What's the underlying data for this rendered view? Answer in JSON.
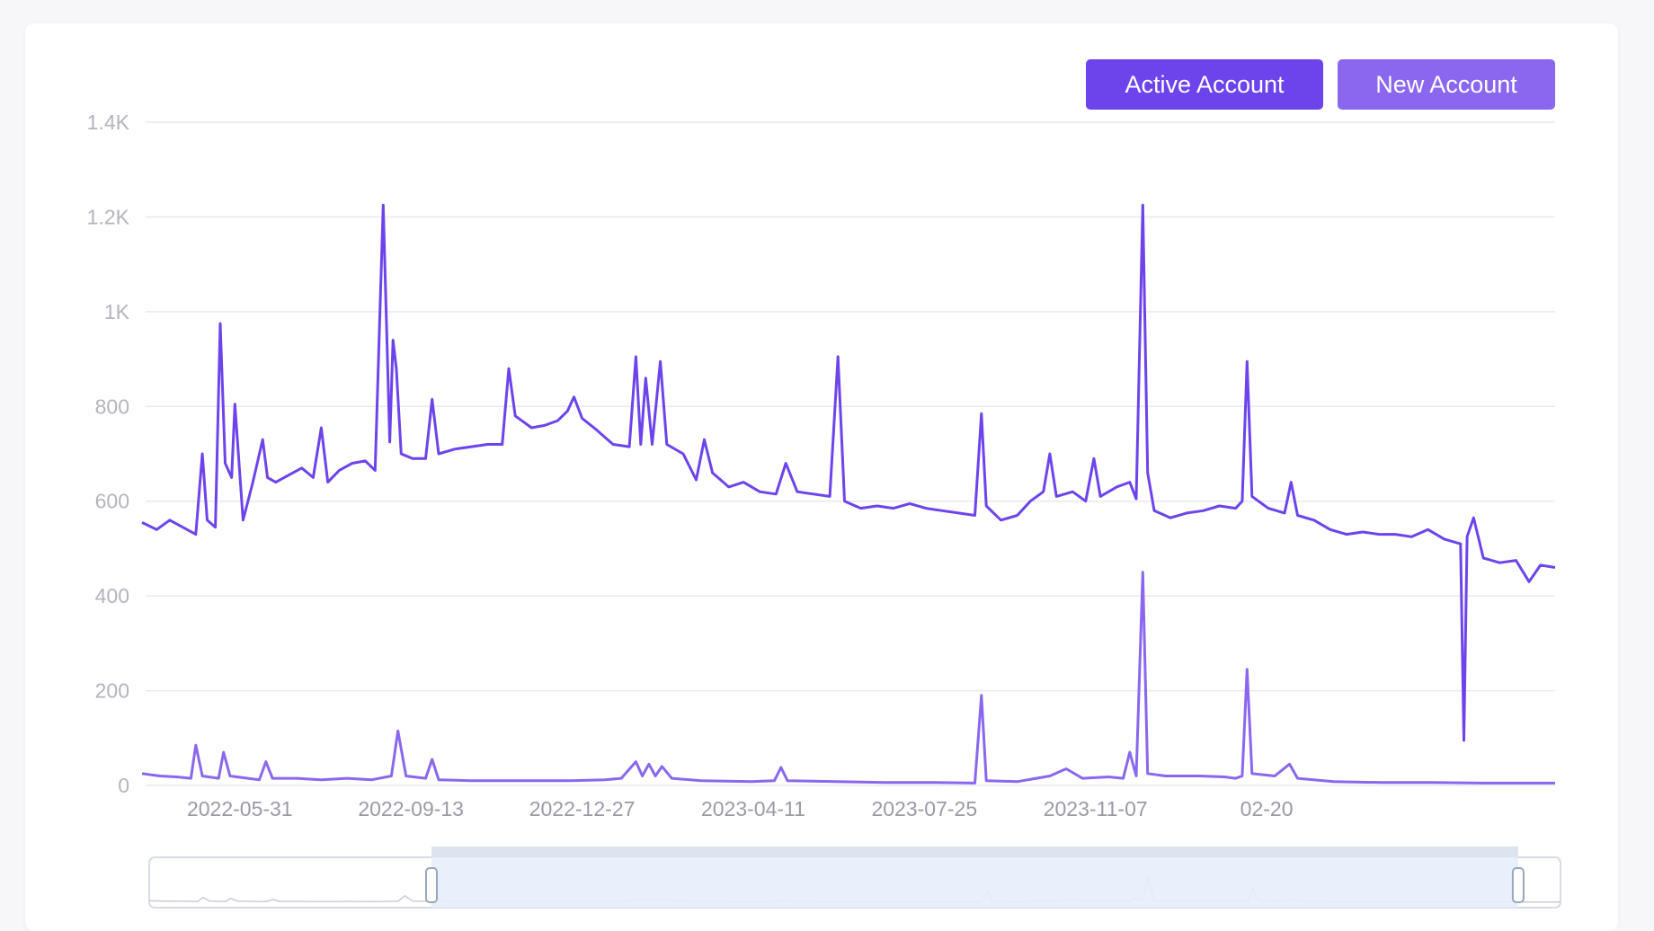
{
  "colors": {
    "active": "#6d44ec",
    "new": "#8a67ee",
    "grid": "#e9e9ef",
    "zoom_fill": "#e6eefc",
    "zoom_border": "#b9c6df"
  },
  "legend": {
    "active_label": "Active Account",
    "new_label": "New Account"
  },
  "chart_data": {
    "type": "line",
    "title": "",
    "xlabel": "",
    "ylabel": "",
    "ylim": [
      0,
      1400
    ],
    "y_ticks": [
      {
        "value": 0,
        "label": "0"
      },
      {
        "value": 200,
        "label": "200"
      },
      {
        "value": 400,
        "label": "400"
      },
      {
        "value": 600,
        "label": "600"
      },
      {
        "value": 800,
        "label": "800"
      },
      {
        "value": 1000,
        "label": "1K"
      },
      {
        "value": 1200,
        "label": "1.2K"
      },
      {
        "value": 1400,
        "label": "1.4K"
      }
    ],
    "x_range": [
      "2022-04-01",
      "2024-08-15"
    ],
    "x_ticks": [
      {
        "date": "2022-05-31",
        "label": "2022-05-31"
      },
      {
        "date": "2022-09-13",
        "label": "2022-09-13"
      },
      {
        "date": "2022-12-27",
        "label": "2022-12-27"
      },
      {
        "date": "2023-04-11",
        "label": "2023-04-11"
      },
      {
        "date": "2023-07-25",
        "label": "2023-07-25"
      },
      {
        "date": "2023-11-07",
        "label": "2023-11-07"
      },
      {
        "date": "2024-02-20",
        "label": "02-20"
      }
    ],
    "grid": true,
    "legend_position": "top-right",
    "series": [
      {
        "name": "Active Account",
        "color": "#6d44ec",
        "points": [
          [
            "2022-04-01",
            555
          ],
          [
            "2022-04-10",
            540
          ],
          [
            "2022-04-18",
            560
          ],
          [
            "2022-04-26",
            545
          ],
          [
            "2022-05-04",
            530
          ],
          [
            "2022-05-08",
            700
          ],
          [
            "2022-05-11",
            560
          ],
          [
            "2022-05-16",
            545
          ],
          [
            "2022-05-19",
            975
          ],
          [
            "2022-05-22",
            680
          ],
          [
            "2022-05-26",
            650
          ],
          [
            "2022-05-28",
            805
          ],
          [
            "2022-06-02",
            560
          ],
          [
            "2022-06-08",
            640
          ],
          [
            "2022-06-14",
            730
          ],
          [
            "2022-06-17",
            650
          ],
          [
            "2022-06-22",
            640
          ],
          [
            "2022-06-30",
            655
          ],
          [
            "2022-07-08",
            670
          ],
          [
            "2022-07-15",
            650
          ],
          [
            "2022-07-20",
            755
          ],
          [
            "2022-07-24",
            640
          ],
          [
            "2022-07-31",
            665
          ],
          [
            "2022-08-08",
            680
          ],
          [
            "2022-08-16",
            685
          ],
          [
            "2022-08-22",
            665
          ],
          [
            "2022-08-27",
            1225
          ],
          [
            "2022-08-31",
            725
          ],
          [
            "2022-09-02",
            940
          ],
          [
            "2022-09-04",
            880
          ],
          [
            "2022-09-07",
            700
          ],
          [
            "2022-09-14",
            690
          ],
          [
            "2022-09-22",
            690
          ],
          [
            "2022-09-26",
            815
          ],
          [
            "2022-09-30",
            700
          ],
          [
            "2022-10-10",
            710
          ],
          [
            "2022-10-20",
            715
          ],
          [
            "2022-10-30",
            720
          ],
          [
            "2022-11-08",
            720
          ],
          [
            "2022-11-12",
            880
          ],
          [
            "2022-11-16",
            780
          ],
          [
            "2022-11-26",
            755
          ],
          [
            "2022-12-04",
            760
          ],
          [
            "2022-12-12",
            770
          ],
          [
            "2022-12-18",
            790
          ],
          [
            "2022-12-22",
            820
          ],
          [
            "2022-12-27",
            775
          ],
          [
            "2023-01-05",
            750
          ],
          [
            "2023-01-15",
            720
          ],
          [
            "2023-01-25",
            715
          ],
          [
            "2023-01-29",
            905
          ],
          [
            "2023-02-01",
            720
          ],
          [
            "2023-02-04",
            860
          ],
          [
            "2023-02-08",
            720
          ],
          [
            "2023-02-13",
            895
          ],
          [
            "2023-02-17",
            720
          ],
          [
            "2023-02-27",
            700
          ],
          [
            "2023-03-07",
            645
          ],
          [
            "2023-03-12",
            730
          ],
          [
            "2023-03-17",
            660
          ],
          [
            "2023-03-27",
            630
          ],
          [
            "2023-04-05",
            640
          ],
          [
            "2023-04-15",
            620
          ],
          [
            "2023-04-25",
            615
          ],
          [
            "2023-05-01",
            680
          ],
          [
            "2023-05-08",
            620
          ],
          [
            "2023-05-18",
            615
          ],
          [
            "2023-05-28",
            610
          ],
          [
            "2023-06-02",
            905
          ],
          [
            "2023-06-06",
            600
          ],
          [
            "2023-06-16",
            585
          ],
          [
            "2023-06-26",
            590
          ],
          [
            "2023-07-06",
            585
          ],
          [
            "2023-07-16",
            595
          ],
          [
            "2023-07-26",
            585
          ],
          [
            "2023-08-05",
            580
          ],
          [
            "2023-08-15",
            575
          ],
          [
            "2023-08-25",
            570
          ],
          [
            "2023-08-29",
            785
          ],
          [
            "2023-09-01",
            590
          ],
          [
            "2023-09-10",
            560
          ],
          [
            "2023-09-20",
            570
          ],
          [
            "2023-09-28",
            600
          ],
          [
            "2023-10-06",
            620
          ],
          [
            "2023-10-10",
            700
          ],
          [
            "2023-10-14",
            610
          ],
          [
            "2023-10-24",
            620
          ],
          [
            "2023-11-01",
            600
          ],
          [
            "2023-11-06",
            690
          ],
          [
            "2023-11-10",
            610
          ],
          [
            "2023-11-20",
            630
          ],
          [
            "2023-11-28",
            640
          ],
          [
            "2023-12-02",
            605
          ],
          [
            "2023-12-06",
            1225
          ],
          [
            "2023-12-09",
            660
          ],
          [
            "2023-12-13",
            580
          ],
          [
            "2023-12-23",
            565
          ],
          [
            "2024-01-02",
            575
          ],
          [
            "2024-01-12",
            580
          ],
          [
            "2024-01-22",
            590
          ],
          [
            "2024-02-01",
            585
          ],
          [
            "2024-02-05",
            600
          ],
          [
            "2024-02-08",
            895
          ],
          [
            "2024-02-11",
            610
          ],
          [
            "2024-02-21",
            585
          ],
          [
            "2024-03-02",
            575
          ],
          [
            "2024-03-06",
            640
          ],
          [
            "2024-03-10",
            570
          ],
          [
            "2024-03-20",
            560
          ],
          [
            "2024-03-30",
            540
          ],
          [
            "2024-04-09",
            530
          ],
          [
            "2024-04-19",
            535
          ],
          [
            "2024-04-29",
            530
          ],
          [
            "2024-05-09",
            530
          ],
          [
            "2024-05-19",
            525
          ],
          [
            "2024-05-29",
            540
          ],
          [
            "2024-06-08",
            520
          ],
          [
            "2024-06-18",
            510
          ],
          [
            "2024-06-20",
            95
          ],
          [
            "2024-06-22",
            525
          ],
          [
            "2024-06-26",
            565
          ],
          [
            "2024-07-02",
            480
          ],
          [
            "2024-07-12",
            470
          ],
          [
            "2024-07-22",
            475
          ],
          [
            "2024-07-30",
            430
          ],
          [
            "2024-08-06",
            465
          ],
          [
            "2024-08-15",
            460
          ]
        ]
      },
      {
        "name": "New Account",
        "color": "#8a67ee",
        "points": [
          [
            "2022-04-01",
            25
          ],
          [
            "2022-04-12",
            20
          ],
          [
            "2022-04-22",
            18
          ],
          [
            "2022-05-01",
            15
          ],
          [
            "2022-05-04",
            85
          ],
          [
            "2022-05-08",
            20
          ],
          [
            "2022-05-18",
            15
          ],
          [
            "2022-05-21",
            70
          ],
          [
            "2022-05-25",
            20
          ],
          [
            "2022-06-05",
            15
          ],
          [
            "2022-06-12",
            12
          ],
          [
            "2022-06-16",
            50
          ],
          [
            "2022-06-20",
            15
          ],
          [
            "2022-07-05",
            15
          ],
          [
            "2022-07-20",
            12
          ],
          [
            "2022-08-05",
            15
          ],
          [
            "2022-08-20",
            12
          ],
          [
            "2022-09-01",
            20
          ],
          [
            "2022-09-05",
            115
          ],
          [
            "2022-09-10",
            20
          ],
          [
            "2022-09-22",
            15
          ],
          [
            "2022-09-26",
            55
          ],
          [
            "2022-09-30",
            12
          ],
          [
            "2022-10-20",
            10
          ],
          [
            "2022-11-10",
            10
          ],
          [
            "2022-12-01",
            10
          ],
          [
            "2022-12-20",
            10
          ],
          [
            "2023-01-10",
            12
          ],
          [
            "2023-01-20",
            15
          ],
          [
            "2023-01-29",
            50
          ],
          [
            "2023-02-02",
            20
          ],
          [
            "2023-02-06",
            45
          ],
          [
            "2023-02-10",
            20
          ],
          [
            "2023-02-14",
            40
          ],
          [
            "2023-02-20",
            15
          ],
          [
            "2023-03-10",
            10
          ],
          [
            "2023-04-10",
            8
          ],
          [
            "2023-04-24",
            10
          ],
          [
            "2023-04-28",
            38
          ],
          [
            "2023-05-02",
            10
          ],
          [
            "2023-06-01",
            8
          ],
          [
            "2023-07-01",
            6
          ],
          [
            "2023-08-01",
            6
          ],
          [
            "2023-08-25",
            5
          ],
          [
            "2023-08-29",
            190
          ],
          [
            "2023-09-01",
            10
          ],
          [
            "2023-09-20",
            8
          ],
          [
            "2023-10-10",
            20
          ],
          [
            "2023-10-20",
            35
          ],
          [
            "2023-10-30",
            15
          ],
          [
            "2023-11-15",
            18
          ],
          [
            "2023-11-24",
            15
          ],
          [
            "2023-11-28",
            70
          ],
          [
            "2023-12-02",
            20
          ],
          [
            "2023-12-06",
            450
          ],
          [
            "2023-12-09",
            25
          ],
          [
            "2023-12-20",
            20
          ],
          [
            "2024-01-10",
            20
          ],
          [
            "2024-01-25",
            18
          ],
          [
            "2024-02-01",
            15
          ],
          [
            "2024-02-05",
            20
          ],
          [
            "2024-02-08",
            245
          ],
          [
            "2024-02-11",
            25
          ],
          [
            "2024-02-25",
            20
          ],
          [
            "2024-03-05",
            45
          ],
          [
            "2024-03-10",
            15
          ],
          [
            "2024-04-01",
            8
          ],
          [
            "2024-05-01",
            6
          ],
          [
            "2024-06-01",
            6
          ],
          [
            "2024-07-01",
            5
          ],
          [
            "2024-08-15",
            5
          ]
        ]
      }
    ],
    "zoom_window": {
      "start": 0.2,
      "end": 0.97
    }
  }
}
